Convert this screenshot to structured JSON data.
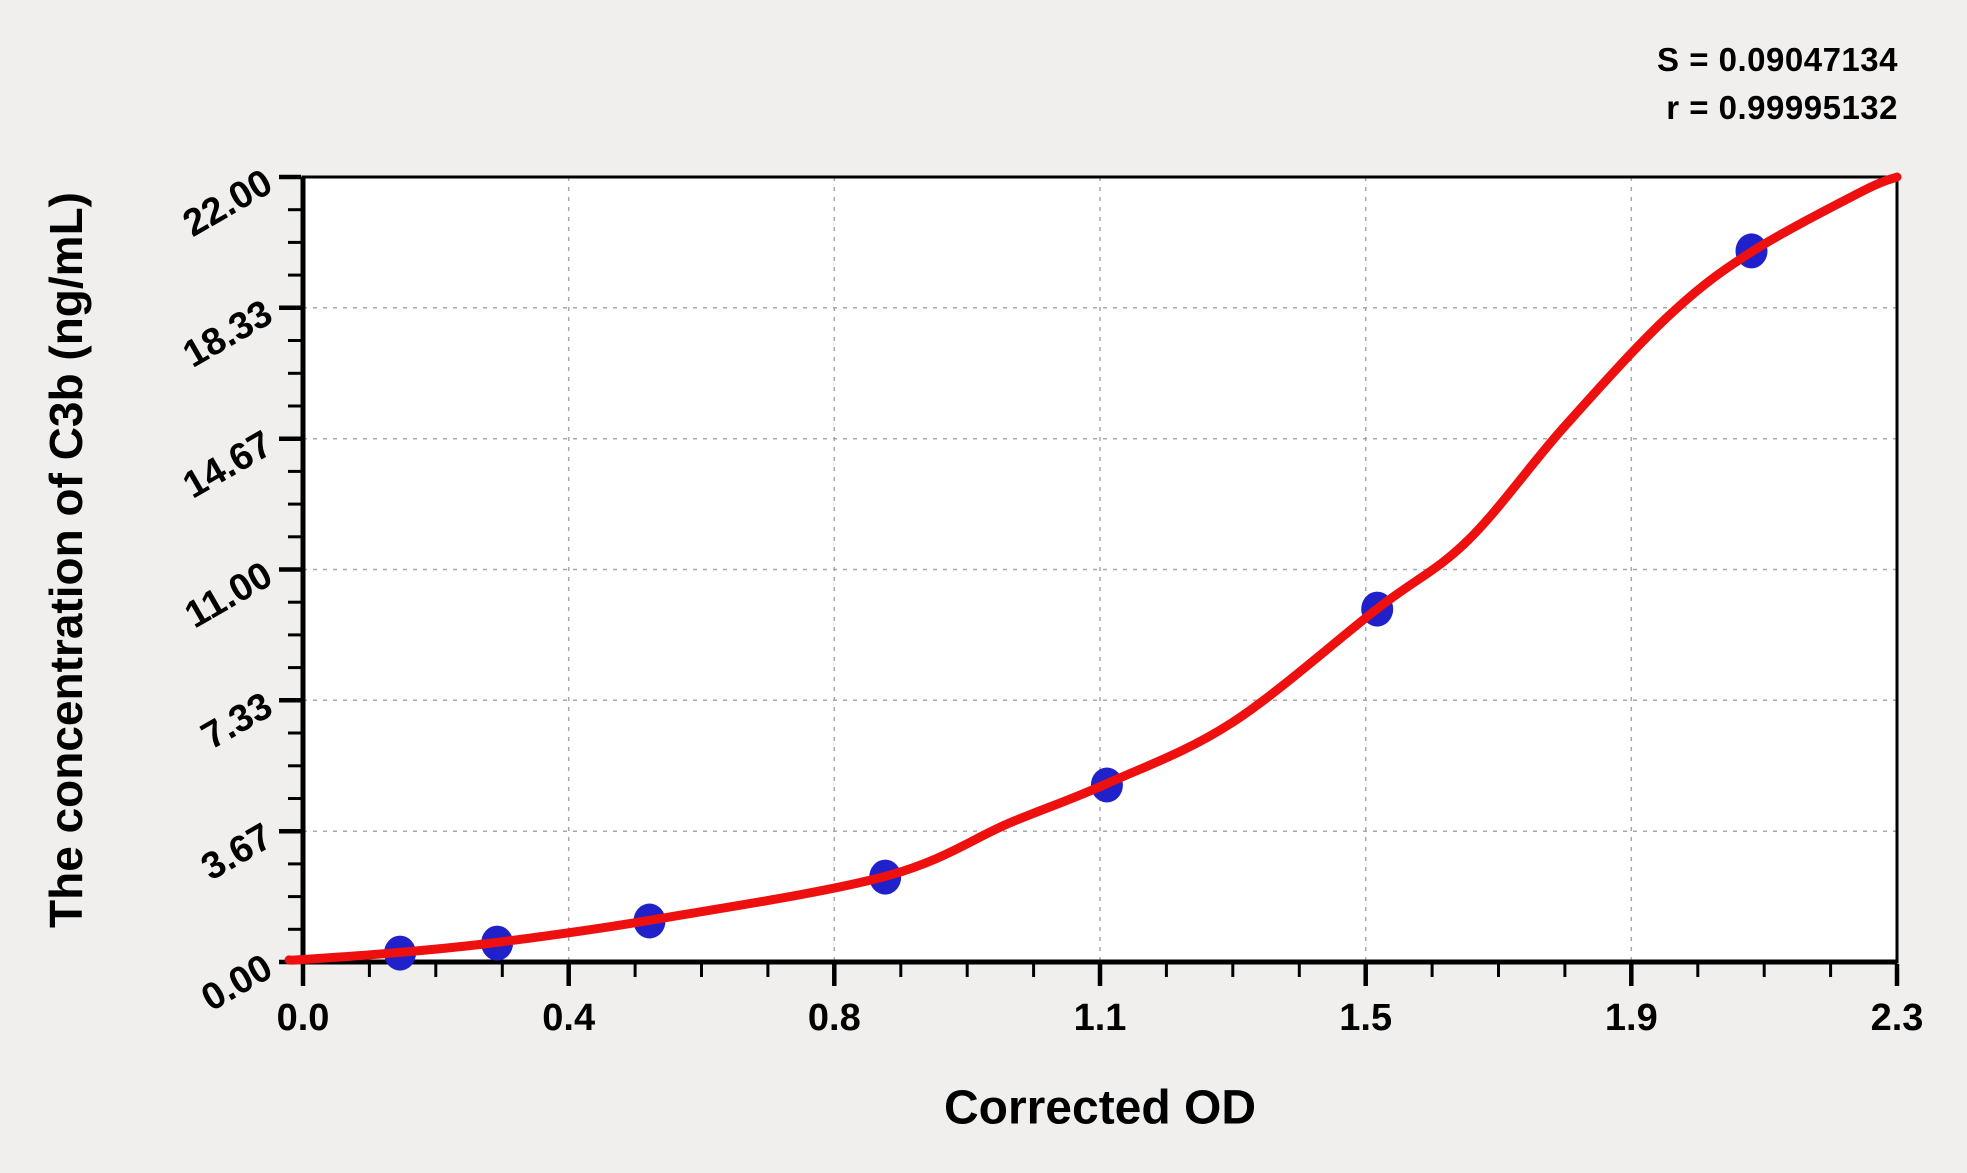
{
  "page": {
    "background_color": "#f0efee",
    "plot_background_color": "#ffffff"
  },
  "stats": {
    "s_line": "S = 0.09047134",
    "r_line": "r = 0.99995132"
  },
  "chart_data": {
    "type": "scatter",
    "title": "",
    "xlabel": "Corrected OD",
    "ylabel": "The concentration of C3b (ng/mL)",
    "xlim": [
      0,
      2.3
    ],
    "ylim": [
      0,
      22
    ],
    "x_tick_labels": [
      "0.0",
      "0.4",
      "0.8",
      "1.1",
      "1.5",
      "1.9",
      "2.3"
    ],
    "y_tick_labels": [
      "0.00",
      "3.67",
      "7.33",
      "11.00",
      "14.67",
      "18.33",
      "22.00"
    ],
    "minor_divisions_per_major": 4,
    "grid": "dashed-at-major-ticks",
    "grid_color": "#a8a8a8",
    "legend": "none",
    "stats": {
      "S": 0.09047134,
      "r": 0.99995132
    },
    "series": [
      {
        "name": "standard-points",
        "type": "scatter",
        "color": "#2121cc",
        "points": [
          [
            0.14,
            0.25
          ],
          [
            0.28,
            0.53
          ],
          [
            0.5,
            1.15
          ],
          [
            0.84,
            2.38
          ],
          [
            1.16,
            4.96
          ],
          [
            1.55,
            9.89
          ],
          [
            2.09,
            19.93
          ]
        ]
      },
      {
        "name": "fitted-curve",
        "type": "line",
        "color": "#ee0f0f",
        "points": [
          [
            -0.02,
            0.06
          ],
          [
            0.0,
            0.07
          ],
          [
            0.14,
            0.27
          ],
          [
            0.28,
            0.55
          ],
          [
            0.5,
            1.17
          ],
          [
            0.84,
            2.4
          ],
          [
            1.02,
            3.9
          ],
          [
            1.16,
            5.0
          ],
          [
            1.34,
            6.7
          ],
          [
            1.55,
            9.9
          ],
          [
            1.68,
            11.8
          ],
          [
            1.82,
            15.0
          ],
          [
            1.97,
            18.1
          ],
          [
            2.09,
            19.9
          ],
          [
            2.25,
            21.6
          ],
          [
            2.3,
            22.0
          ]
        ]
      }
    ]
  }
}
